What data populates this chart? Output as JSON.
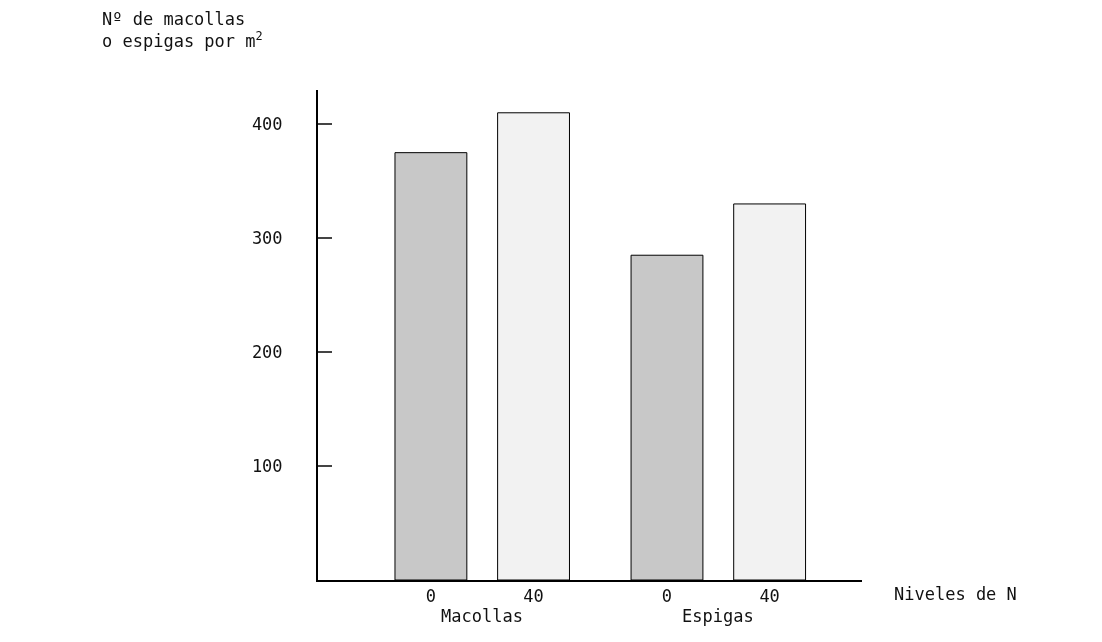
{
  "chart_data": {
    "type": "bar",
    "ylabel": "Nº de macollas\no espigas por m$^{2}$",
    "xlabel": "Niveles de N",
    "categories": [
      "0",
      "40",
      "0",
      "40"
    ],
    "values": [
      375,
      410,
      285,
      330
    ],
    "colors": [
      "#c8c8c8",
      "#f2f2f2",
      "#c8c8c8",
      "#f2f2f2"
    ],
    "annotations": [
      "Macollas",
      "Espigas"
    ],
    "ylim": [
      0,
      430
    ],
    "yticks": [
      100,
      200,
      300,
      400
    ]
  }
}
